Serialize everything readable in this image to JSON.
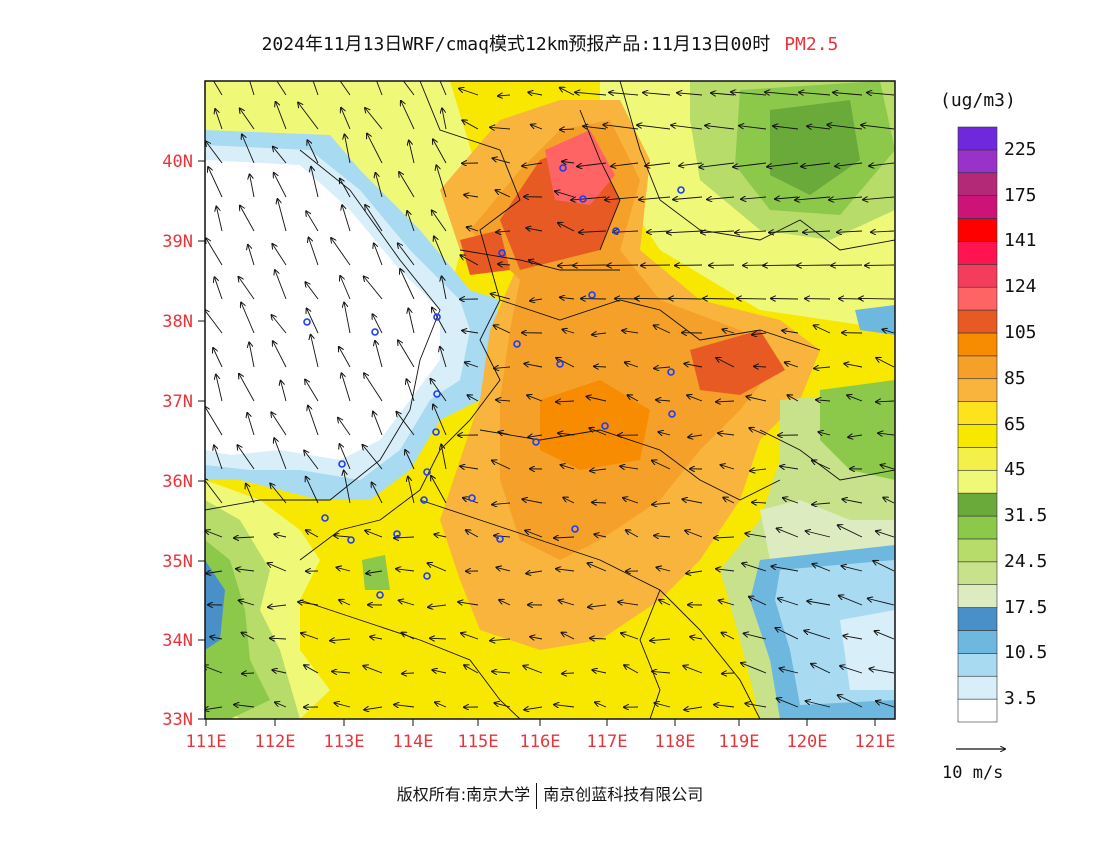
{
  "title": {
    "main": "2024年11月13日WRF/cmaq模式12km预报产品:11月13日00时",
    "pollutant": "PM2.5"
  },
  "colorbar": {
    "unit": "(ug/m3)",
    "colors": [
      "#ffffff",
      "#d8eef8",
      "#a8daf2",
      "#6eb8e0",
      "#4a90c8",
      "#dcecc0",
      "#c8e28c",
      "#b8dc6a",
      "#8cc84a",
      "#6aaa3a",
      "#f0f878",
      "#f4f04a",
      "#f8e800",
      "#fde21e",
      "#f8b43c",
      "#f5a028",
      "#f88c00",
      "#e85a24",
      "#ff6464",
      "#f43c5c",
      "#ff1450",
      "#ff0000",
      "#cc1478",
      "#b42878",
      "#9832c8",
      "#7028dc"
    ],
    "labels": [
      "3.5",
      "10.5",
      "17.5",
      "24.5",
      "31.5",
      "45",
      "65",
      "85",
      "105",
      "124",
      "141",
      "175",
      "225"
    ]
  },
  "map": {
    "lat_labels": [
      "40N",
      "39N",
      "38N",
      "37N",
      "36N",
      "35N",
      "34N",
      "33N"
    ],
    "lon_labels": [
      "111E",
      "112E",
      "113E",
      "114E",
      "115E",
      "116E",
      "117E",
      "118E",
      "119E",
      "120E",
      "121E"
    ]
  },
  "wind_reference": {
    "label": "10 m/s"
  },
  "footer": {
    "copyright": "版权所有:南京大学",
    "company": "南京创蓝科技有限公司"
  }
}
